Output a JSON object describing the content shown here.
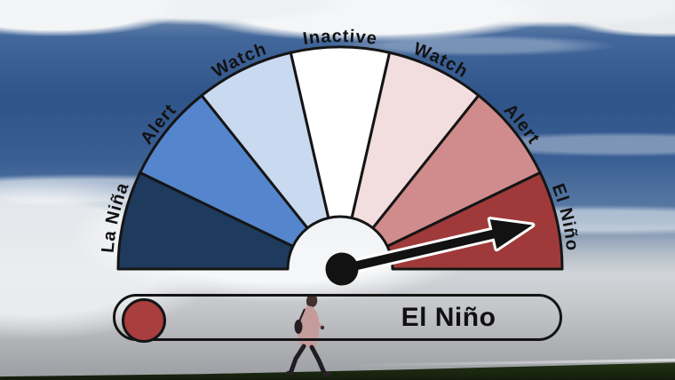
{
  "status_bar": {
    "label": "El Niño",
    "indicator_color": "#A83E3E",
    "border_color": "#141414"
  },
  "chart_data": {
    "type": "pie",
    "subtype": "semicircular-gauge-dial",
    "title": "",
    "segments": [
      {
        "label": "La Niña",
        "color": "#1E3A5C"
      },
      {
        "label": "Alert",
        "color": "#5585CC"
      },
      {
        "label": "Watch",
        "color": "#C9D9F0"
      },
      {
        "label": "Inactive",
        "color": "#FFFFFF"
      },
      {
        "label": "Watch",
        "color": "#F2DEDE"
      },
      {
        "label": "Alert",
        "color": "#D08C8C"
      },
      {
        "label": "El Niño",
        "color": "#A03A3A"
      }
    ],
    "segment_span_deg": 25.7,
    "segment_label_color": "#121212",
    "segment_outline_color": "#151515",
    "needle": {
      "points_to": "El Niño",
      "angle_deg_above_horizontal_right": 13,
      "color": "#121212",
      "outline_color": "#ffffff"
    },
    "legend_position": "none"
  }
}
